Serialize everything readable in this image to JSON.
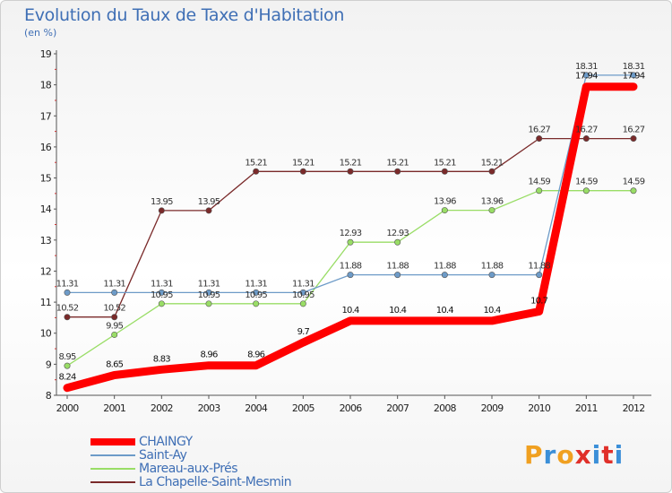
{
  "header": {
    "title": "Evolution du Taux de Taxe d'Habitation",
    "subtitle": "(en %)"
  },
  "logo": {
    "text": "Proxiti",
    "colors": [
      "#f0a020",
      "#3b8fd8",
      "#f0a020",
      "#e0302a",
      "#3b8fd8",
      "#e0302a",
      "#3b8fd8"
    ]
  },
  "chart_data": {
    "type": "line",
    "title": "Evolution du Taux de Taxe d'Habitation",
    "ylabel": "(en %)",
    "xlabel": "",
    "x": [
      "2000",
      "2001",
      "2002",
      "2003",
      "2004",
      "2005",
      "2006",
      "2007",
      "2008",
      "2009",
      "2010",
      "2011",
      "2012"
    ],
    "ylim": [
      8,
      19
    ],
    "yticks": [
      8,
      9,
      10,
      11,
      12,
      13,
      14,
      15,
      16,
      17,
      18,
      19
    ],
    "grid": false,
    "legend_position": "bottom-left",
    "series": [
      {
        "name": "CHAINGY",
        "color": "#ff0000",
        "values": [
          8.24,
          8.65,
          8.83,
          8.96,
          8.96,
          9.7,
          10.4,
          10.4,
          10.4,
          10.4,
          10.7,
          17.94,
          17.94
        ],
        "labels": [
          "8.24",
          "8.65",
          "8.83",
          "8.96",
          "8.96",
          "9.7",
          "10.4",
          "10.4",
          "10.4",
          "10.4",
          "10.7",
          "17.94",
          "17.94"
        ]
      },
      {
        "name": "Saint-Ay",
        "color": "#6d9bc8",
        "values": [
          11.31,
          11.31,
          11.31,
          11.31,
          11.31,
          11.31,
          11.88,
          11.88,
          11.88,
          11.88,
          11.88,
          18.31,
          18.31
        ],
        "labels": [
          "11.31",
          "11.31",
          "11.31",
          "11.31",
          "11.31",
          "11.31",
          "11.88",
          "11.88",
          "11.88",
          "11.88",
          "11.88",
          "18.31",
          "18.31"
        ]
      },
      {
        "name": "Mareau-aux-Prés",
        "color": "#99dd66",
        "values": [
          8.95,
          9.95,
          10.95,
          10.95,
          10.95,
          10.95,
          12.93,
          12.93,
          13.96,
          13.96,
          14.59,
          14.59,
          14.59
        ],
        "labels": [
          "8.95",
          "9.95",
          "10.95",
          "10.95",
          "10.95",
          "10.95",
          "12.93",
          "12.93",
          "13.96",
          "13.96",
          "14.59",
          "14.59",
          "14.59"
        ]
      },
      {
        "name": "La Chapelle-Saint-Mesmin",
        "color": "#7a2a2a",
        "values": [
          10.52,
          10.52,
          13.95,
          13.95,
          15.21,
          15.21,
          15.21,
          15.21,
          15.21,
          15.21,
          16.27,
          16.27,
          16.27
        ],
        "labels": [
          "10.52",
          "10.52",
          "13.95",
          "13.95",
          "15.21",
          "15.21",
          "15.21",
          "15.21",
          "15.21",
          "15.21",
          "16.27",
          "16.27",
          "16.27"
        ]
      }
    ]
  }
}
